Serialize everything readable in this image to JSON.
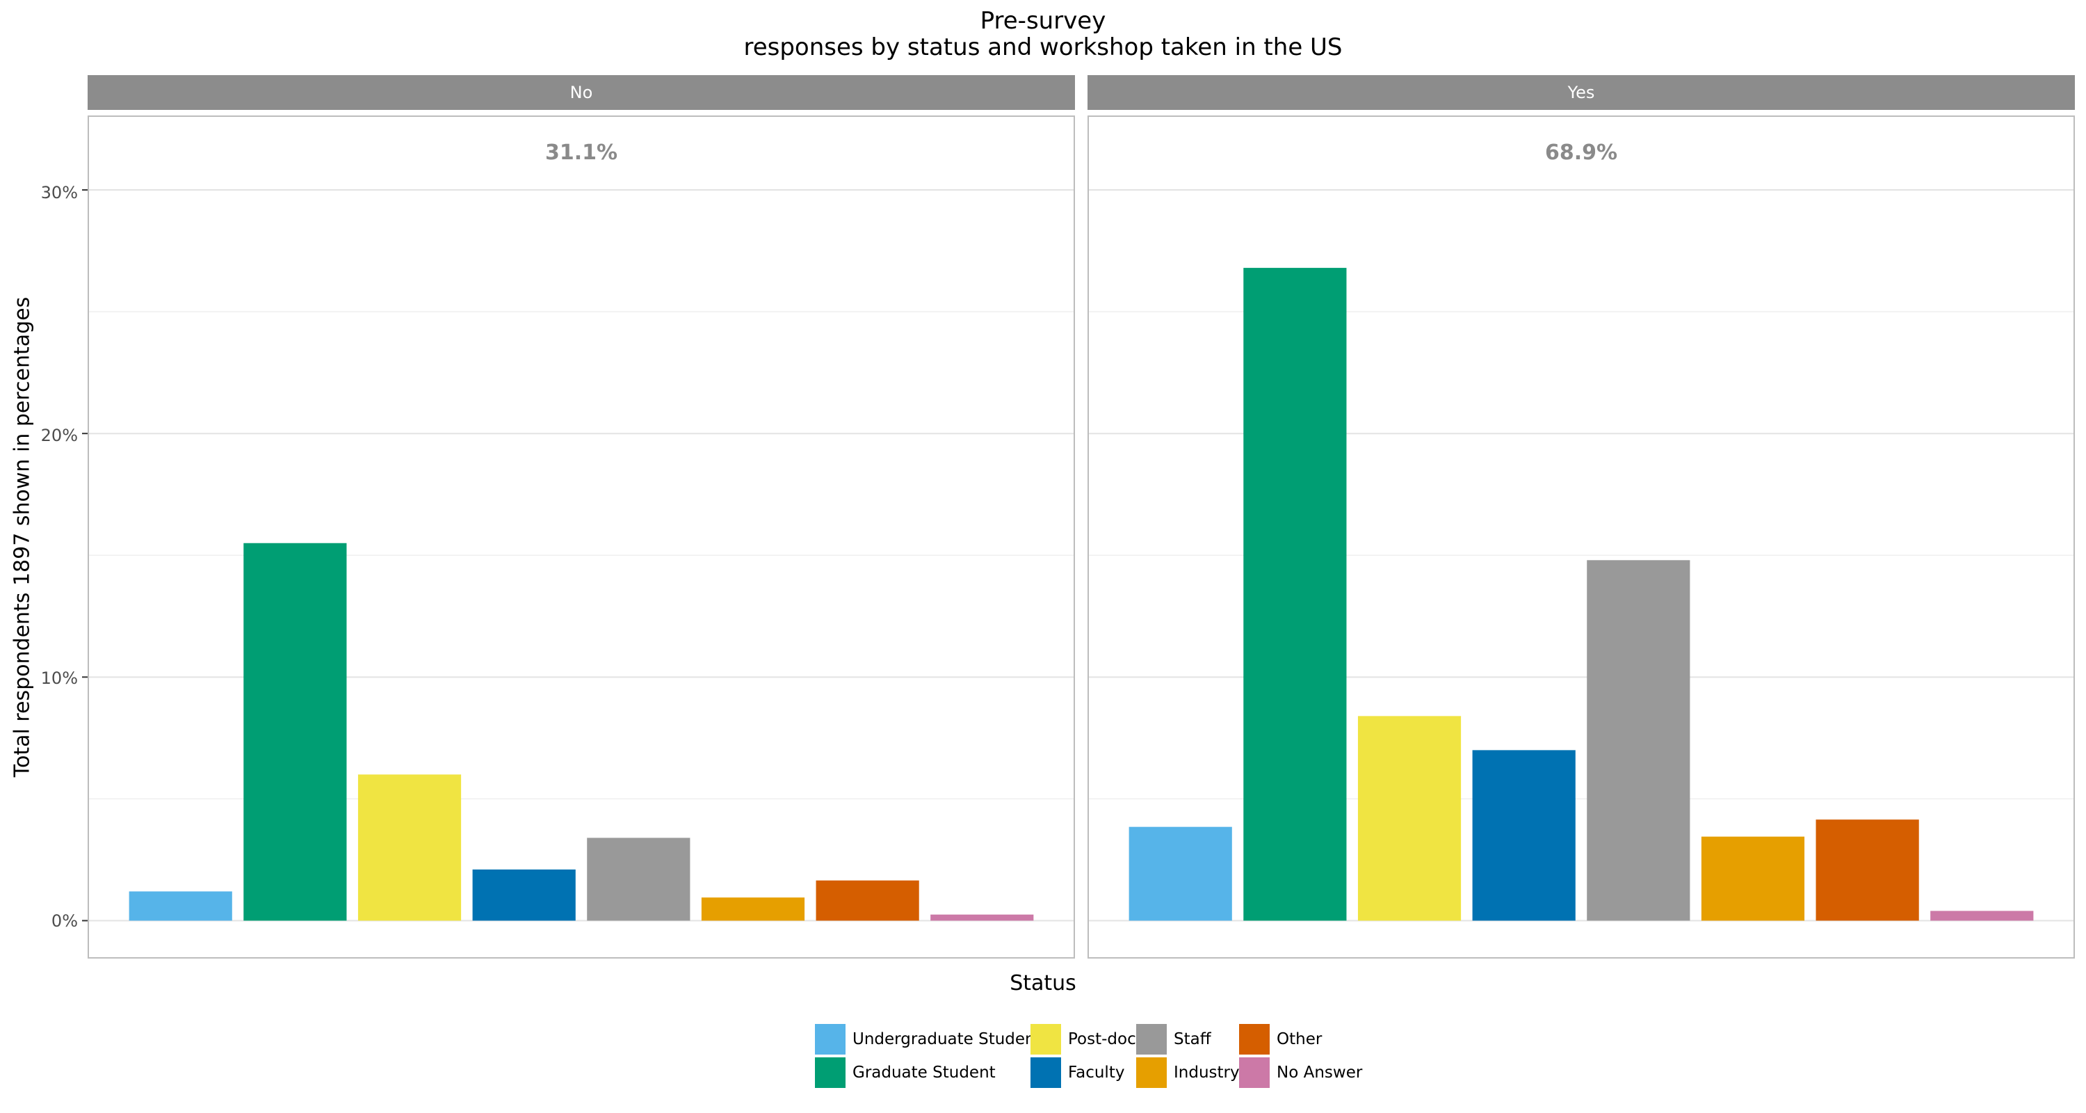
{
  "chart_data": {
    "type": "bar",
    "title": "Pre-survey",
    "subtitle": "responses by status and workshop taken in the US",
    "xlabel": "Status",
    "ylabel": "Total respondents 1897 shown in percentages",
    "ylim": [
      -1.5,
      33
    ],
    "yticks": [
      "0%",
      "10%",
      "20%",
      "30%"
    ],
    "ytick_values": [
      0,
      10,
      20,
      30
    ],
    "grid": true,
    "legend_position": "bottom",
    "categories": [
      "Undergraduate Student",
      "Graduate Student",
      "Post-doc",
      "Faculty",
      "Staff",
      "Industry",
      "Other",
      "No Answer"
    ],
    "colors": [
      "#56B4E9",
      "#009E73",
      "#F0E442",
      "#0072B2",
      "#999999",
      "#E69F00",
      "#D55E00",
      "#CC79A7"
    ],
    "facets": [
      {
        "name": "No",
        "total_label": "31.1%",
        "values": [
          1.2,
          15.5,
          6.0,
          2.1,
          3.4,
          0.95,
          1.65,
          0.25
        ]
      },
      {
        "name": "Yes",
        "total_label": "68.9%",
        "values": [
          3.85,
          26.8,
          8.4,
          7.0,
          14.8,
          3.45,
          4.15,
          0.4
        ]
      }
    ]
  }
}
